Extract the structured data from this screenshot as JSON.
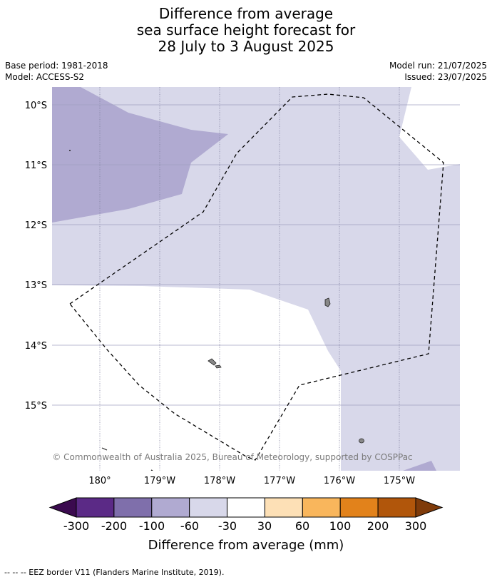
{
  "title": {
    "line1": "Difference from average",
    "line2": "sea surface height forecast for",
    "line3": "28 July to 3 August 2025"
  },
  "meta": {
    "base_period": "Base period: 1981-2018",
    "model": "Model: ACCESS-S2",
    "model_run": "Model run: 21/07/2025",
    "issued": "Issued: 23/07/2025"
  },
  "map": {
    "lat_labels": [
      "10°S",
      "11°S",
      "12°S",
      "13°S",
      "14°S",
      "15°S"
    ],
    "lon_labels": [
      "180°",
      "179°W",
      "178°W",
      "177°W",
      "176°W",
      "175°W"
    ],
    "copyright": "© Commonwealth of Australia 2025, Bureau of Meteorology, supported by COSPPac",
    "eez_line_style": "dashed",
    "land_color": "#888888"
  },
  "colorbar": {
    "tick_labels": [
      "-300",
      "-200",
      "-100",
      "-60",
      "-30",
      "30",
      "60",
      "100",
      "200",
      "300"
    ],
    "colors": [
      "#3b0a4f",
      "#5b2a86",
      "#7f6fab",
      "#b0aad1",
      "#d8d8ea",
      "#ffffff",
      "#fde0b6",
      "#f9b65c",
      "#e2821b",
      "#b1560b",
      "#7f3b0a"
    ],
    "label": "Difference from average (mm)"
  },
  "footer": {
    "eez_note": "--  --  -- EEZ border V11 (Flanders Marine Institute, 2019)."
  }
}
